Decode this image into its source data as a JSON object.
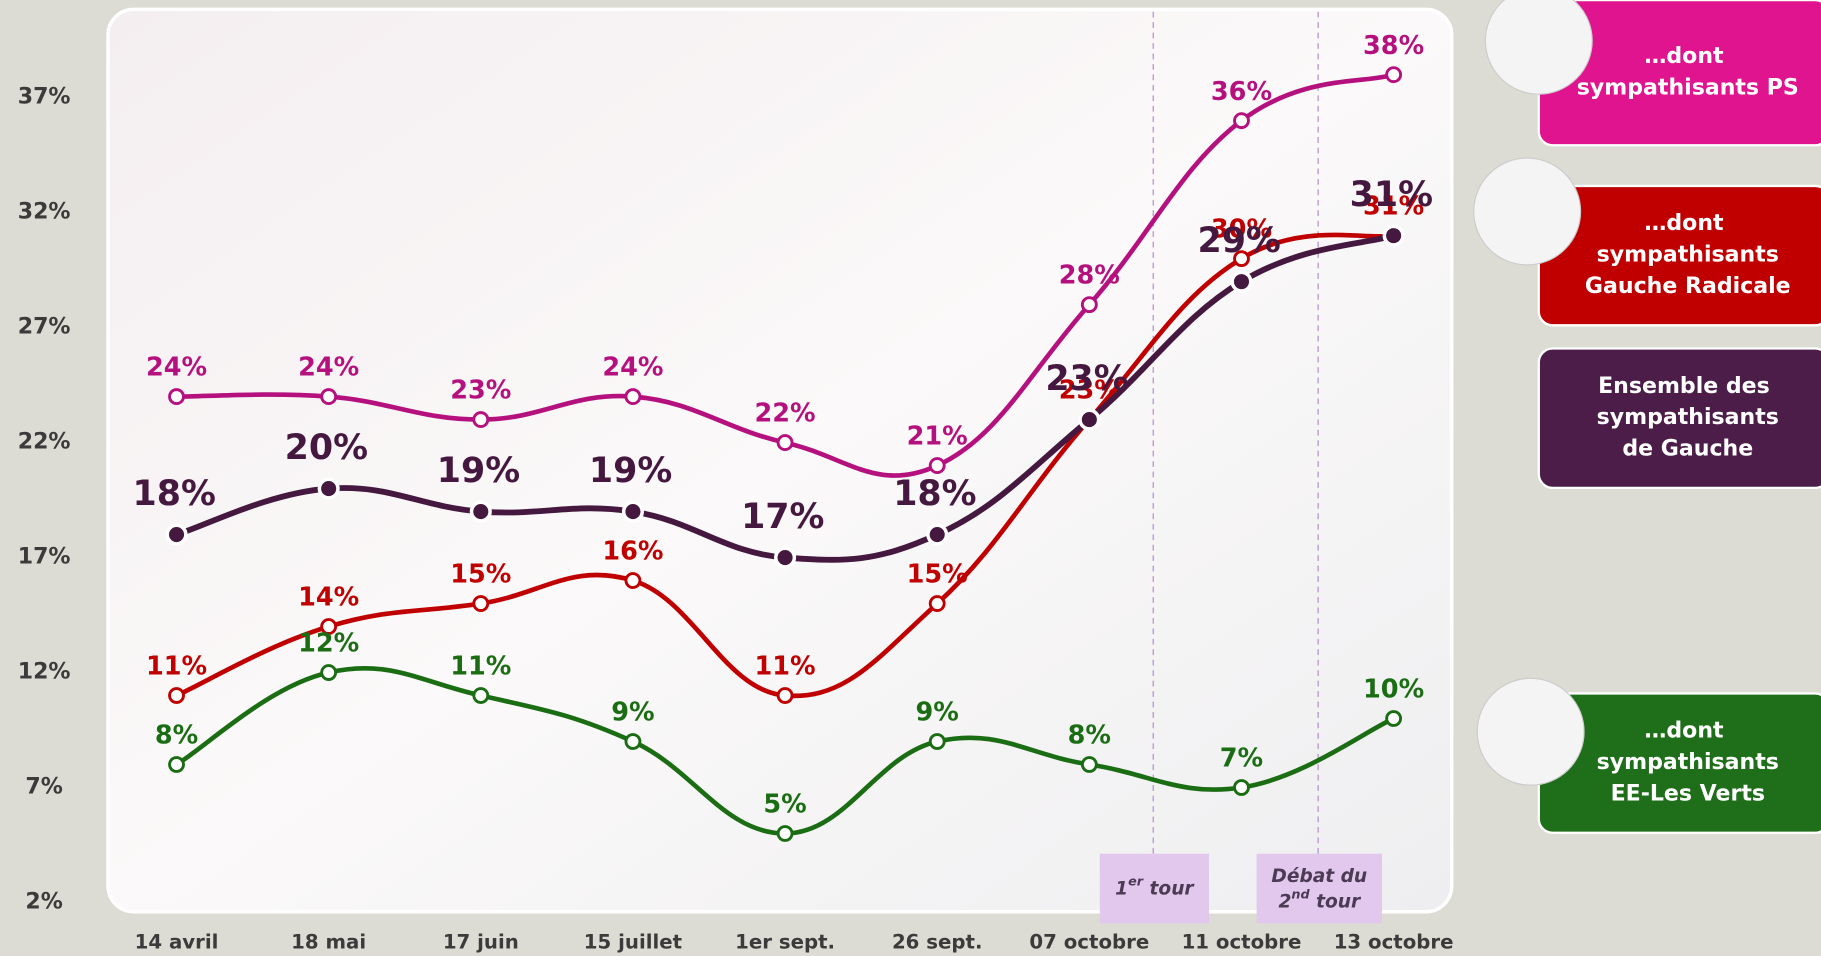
{
  "chart_data": {
    "type": "line",
    "categories": [
      "14 avril",
      "18 mai",
      "17 juin",
      "15 juillet",
      "1er sept.",
      "26 sept.",
      "07 octobre",
      "11 octobre",
      "13 octobre"
    ],
    "ylim": [
      2,
      40
    ],
    "yticks": [
      {
        "value": 2,
        "label": "2%"
      },
      {
        "value": 7,
        "label": "7%"
      },
      {
        "value": 12,
        "label": "12%"
      },
      {
        "value": 17,
        "label": "17%"
      },
      {
        "value": 22,
        "label": "22%"
      },
      {
        "value": 27,
        "label": "27%"
      },
      {
        "value": 32,
        "label": "32%"
      },
      {
        "value": 37,
        "label": "37%"
      }
    ],
    "grid": false,
    "legend": "right",
    "series": [
      {
        "name": "…dont sympathisants PS",
        "color": "#b5117e",
        "box_color": "#e0148e",
        "values": [
          24,
          24,
          23,
          24,
          22,
          21,
          28,
          36,
          38
        ],
        "value_labels": [
          "24%",
          "24%",
          "23%",
          "24%",
          "22%",
          "21%",
          "28%",
          "36%",
          "38%"
        ]
      },
      {
        "name": "…dont sympathisants Gauche Radicale",
        "color": "#c00000",
        "box_color": "#c00000",
        "values": [
          11,
          14,
          15,
          16,
          11,
          15,
          23,
          30,
          31
        ],
        "value_labels": [
          "11%",
          "14%",
          "15%",
          "16%",
          "11%",
          "15%",
          "23%",
          "30%",
          "31%"
        ]
      },
      {
        "name": "Ensemble des sympathisants de Gauche",
        "color": "#45183f",
        "box_color": "#4b1d48",
        "values": [
          18,
          20,
          19,
          19,
          17,
          18,
          23,
          29,
          31
        ],
        "value_labels": [
          "18%",
          "20%",
          "19%",
          "19%",
          "17%",
          "18%",
          "23%",
          "29%",
          "31%"
        ]
      },
      {
        "name": "…dont sympathisants EE-Les Verts",
        "color": "#1b6d14",
        "box_color": "#1e6e1a",
        "values": [
          8,
          12,
          11,
          9,
          5,
          9,
          8,
          7,
          10
        ],
        "value_labels": [
          "8%",
          "12%",
          "11%",
          "9%",
          "5%",
          "9%",
          "8%",
          "7%",
          "10%"
        ]
      }
    ],
    "annotations": [
      {
        "lines": [
          [
            "1",
            "er",
            " tour"
          ]
        ]
      },
      {
        "lines": [
          [
            "Débat du"
          ],
          [
            "2",
            "nd",
            " tour"
          ]
        ]
      }
    ]
  }
}
